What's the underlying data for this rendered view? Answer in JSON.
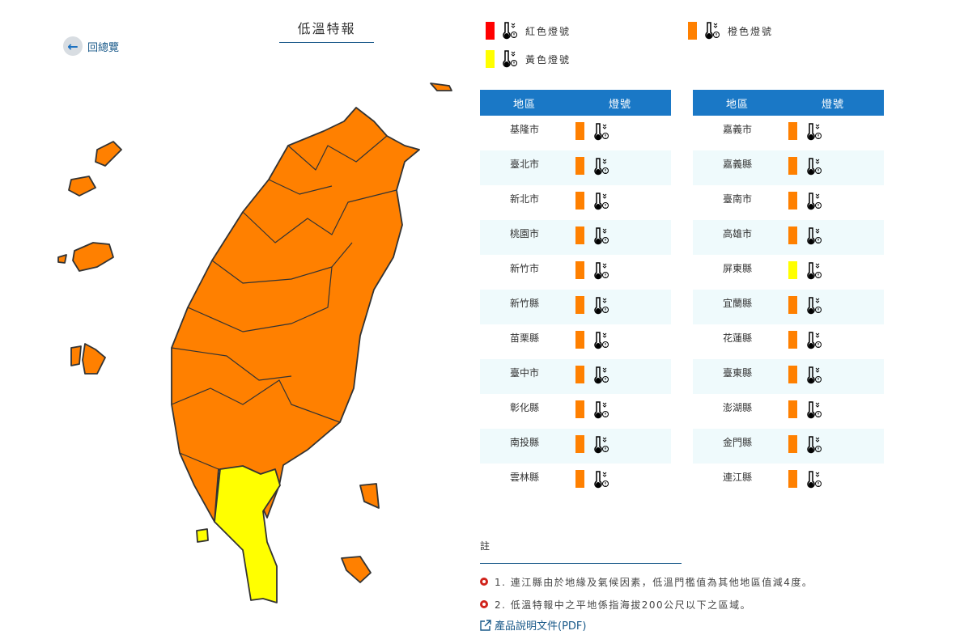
{
  "back_label": "回總覽",
  "title": "低溫特報",
  "colors": {
    "red": "#ff0000",
    "orange": "#ff8000",
    "yellow": "#ffff00",
    "header": "#1a78c6"
  },
  "legend": [
    {
      "label": "紅色燈號",
      "color": "red"
    },
    {
      "label": "橙色燈號",
      "color": "orange"
    },
    {
      "label": "黃色燈號",
      "color": "yellow"
    }
  ],
  "table_headers": {
    "region": "地區",
    "signal": "燈號"
  },
  "left_rows": [
    {
      "name": "基隆市",
      "level": "orange"
    },
    {
      "name": "臺北市",
      "level": "orange"
    },
    {
      "name": "新北市",
      "level": "orange"
    },
    {
      "name": "桃園市",
      "level": "orange"
    },
    {
      "name": "新竹市",
      "level": "orange"
    },
    {
      "name": "新竹縣",
      "level": "orange"
    },
    {
      "name": "苗栗縣",
      "level": "orange"
    },
    {
      "name": "臺中市",
      "level": "orange"
    },
    {
      "name": "彰化縣",
      "level": "orange"
    },
    {
      "name": "南投縣",
      "level": "orange"
    },
    {
      "name": "雲林縣",
      "level": "orange"
    }
  ],
  "right_rows": [
    {
      "name": "嘉義市",
      "level": "orange"
    },
    {
      "name": "嘉義縣",
      "level": "orange"
    },
    {
      "name": "臺南市",
      "level": "orange"
    },
    {
      "name": "高雄市",
      "level": "orange"
    },
    {
      "name": "屏東縣",
      "level": "yellow"
    },
    {
      "name": "宜蘭縣",
      "level": "orange"
    },
    {
      "name": "花蓮縣",
      "level": "orange"
    },
    {
      "name": "臺東縣",
      "level": "orange"
    },
    {
      "name": "澎湖縣",
      "level": "orange"
    },
    {
      "name": "金門縣",
      "level": "orange"
    },
    {
      "name": "連江縣",
      "level": "orange"
    }
  ],
  "notes": {
    "heading": "註",
    "items": [
      "1. 連江縣由於地緣及氣候因素，低溫門檻值為其他地區值減4度。",
      "2. 低溫特報中之平地係指海拔200公尺以下之區域。"
    ],
    "pdf_link": "產品說明文件(PDF)"
  }
}
